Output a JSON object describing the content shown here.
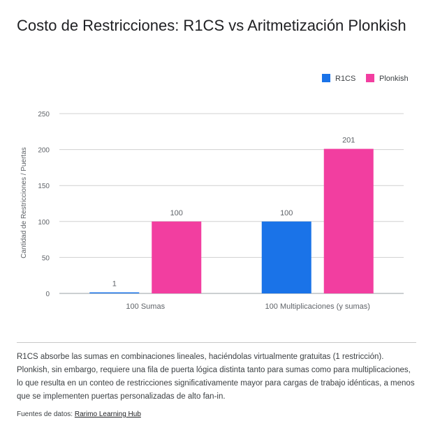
{
  "chart_data": {
    "type": "bar",
    "title": "Costo de Restricciones: R1CS vs Aritmetización Plonkish",
    "ylabel": "Cantidad de Restricciones / Puertas",
    "xlabel": "",
    "categories": [
      "100 Sumas",
      "100 Multiplicaciones (y sumas)"
    ],
    "series": [
      {
        "name": "R1CS",
        "color": "#1a73e8",
        "values": [
          1,
          100
        ]
      },
      {
        "name": "Plonkish",
        "color": "#f23ea0",
        "values": [
          100,
          201
        ]
      }
    ],
    "ylim": [
      0,
      250
    ],
    "yticks": [
      0,
      50,
      100,
      150,
      200,
      250
    ],
    "grid": true,
    "legend_position": "top-right"
  },
  "note": "R1CS absorbe las sumas en combinaciones lineales, haciéndolas virtualmente gratuitas (1 restricción). Plonkish, sin embargo, requiere una fila de puerta lógica distinta tanto para sumas como para multiplicaciones, lo que resulta en un conteo de restricciones significativamente mayor para cargas de trabajo idénticas, a menos que se implementen puertas personalizadas de alto fan-in.",
  "source": {
    "label": "Fuentes de datos:",
    "link_text": "Rarimo Learning Hub"
  }
}
